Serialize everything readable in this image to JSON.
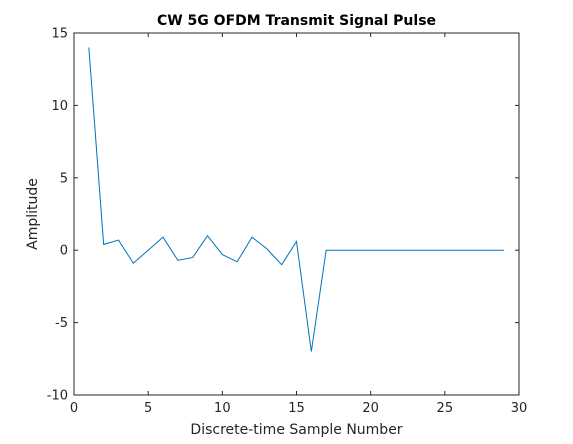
{
  "chart_data": {
    "type": "line",
    "title": "CW 5G OFDM Transmit Signal Pulse",
    "xlabel": "Discrete-time Sample Number",
    "ylabel": "Amplitude",
    "xlim": [
      0,
      30
    ],
    "ylim": [
      -10,
      15
    ],
    "xticks": [
      "0",
      "5",
      "10",
      "15",
      "20",
      "25",
      "30"
    ],
    "yticks": [
      "-10",
      "-5",
      "0",
      "5",
      "10",
      "15"
    ],
    "grid": false,
    "series": [
      {
        "color": "#0072bd",
        "x": [
          1,
          2,
          3,
          4,
          5,
          6,
          7,
          8,
          9,
          10,
          11,
          12,
          13,
          14,
          15,
          16,
          17,
          18,
          19,
          20,
          21,
          22,
          23,
          24,
          25,
          26,
          27,
          28,
          29
        ],
        "values": [
          14,
          0.4,
          0.7,
          -0.9,
          0,
          0.9,
          -0.7,
          -0.5,
          1,
          -0.3,
          -0.8,
          0.9,
          0.1,
          -1,
          0.6,
          -7,
          0,
          0,
          0,
          0,
          0,
          0,
          0,
          0,
          0,
          0,
          0,
          0,
          0
        ]
      }
    ]
  }
}
